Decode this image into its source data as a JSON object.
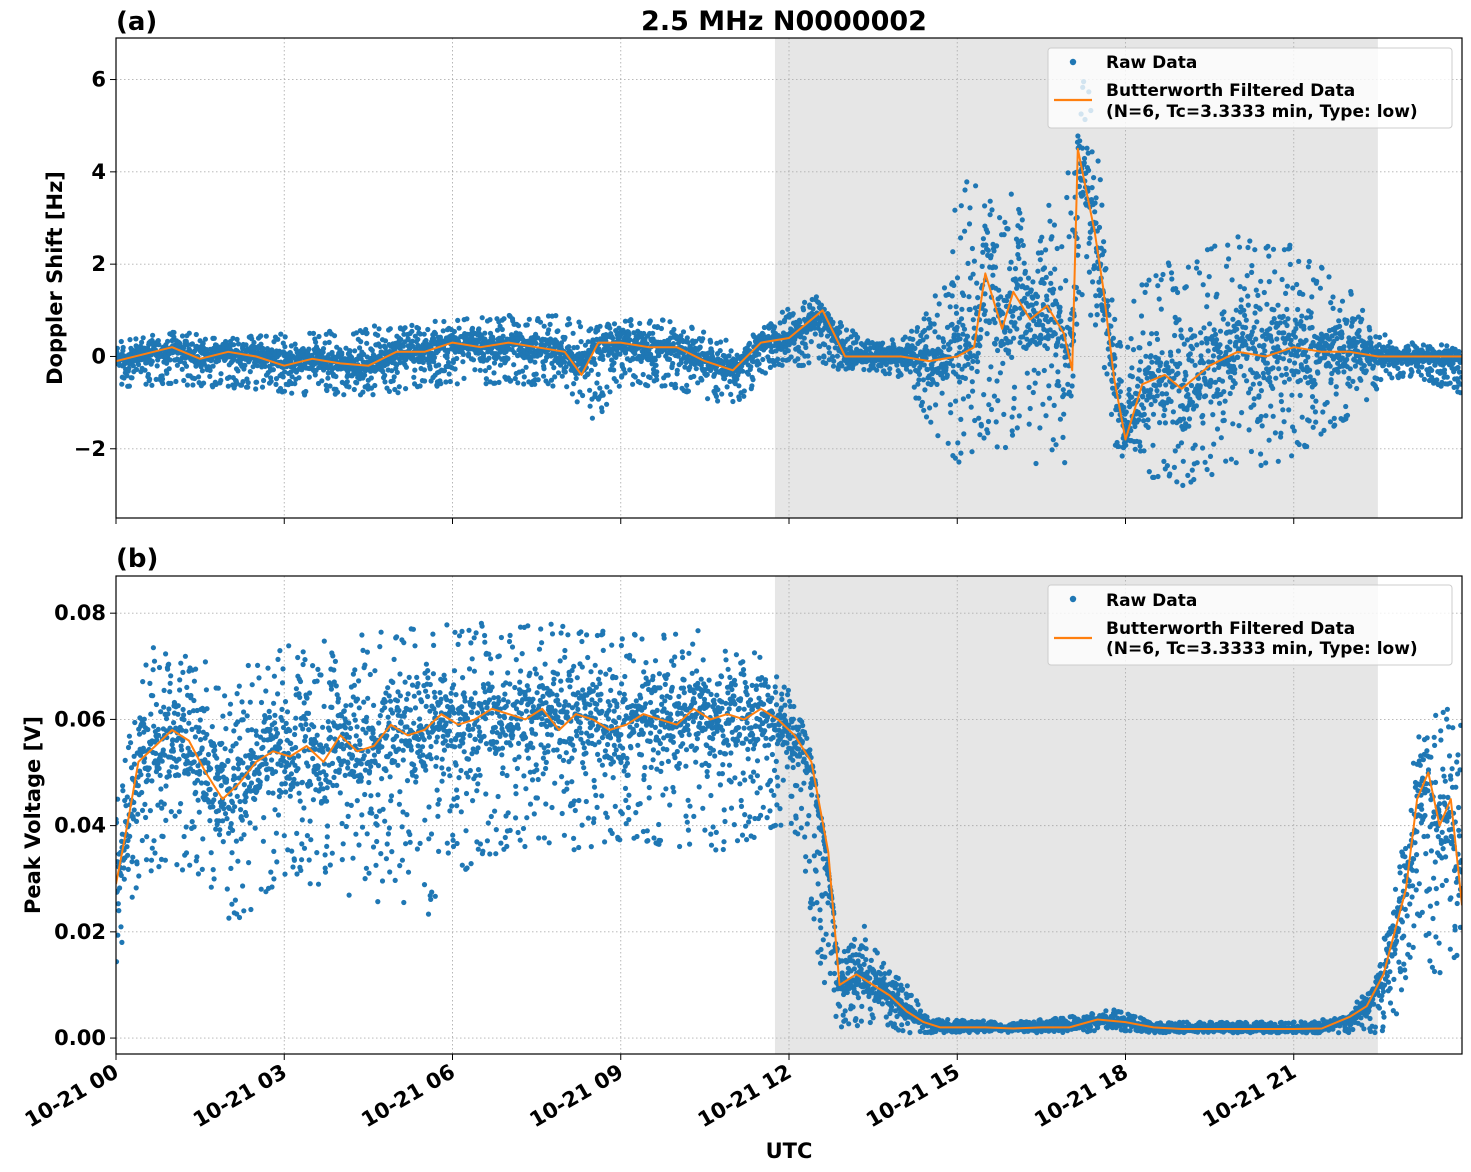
{
  "figure": {
    "title": "2.5 MHz N0000002",
    "xlabel": "UTC"
  },
  "colors": {
    "raw": "#1f77b4",
    "filtered": "#ff7f0e",
    "shade": "#e6e6e6",
    "grid": "#b0b0b0"
  },
  "chart_data": [
    {
      "type": "scatter",
      "panel_label": "(a)",
      "ylabel": "Doppler Shift [Hz]",
      "xlim_hours": [
        0,
        24
      ],
      "ylim": [
        -3.5,
        6.9
      ],
      "yticks": [
        -2,
        0,
        2,
        4,
        6
      ],
      "ytick_labels": [
        "−2",
        "0",
        "2",
        "4",
        "6"
      ],
      "xtick_labels": [],
      "shaded_hours": [
        11.75,
        22.5
      ],
      "grid": true,
      "legend_position": "top-right",
      "legend": [
        "Raw Data",
        "Butterworth Filtered Data",
        "(N=6, Tc=3.3333 min, Type: low)"
      ],
      "series": [
        {
          "name": "Raw Data",
          "kind": "scatter-envelope",
          "x": [
            0,
            1,
            2,
            3,
            4,
            5,
            6,
            7,
            8,
            8.5,
            9,
            10,
            11,
            11.75,
            12.5,
            12.7,
            13.5,
            14,
            14.8,
            15,
            15.5,
            16,
            16.5,
            16.9,
            17.05,
            17.3,
            17.6,
            17.9,
            18.3,
            19,
            20,
            21,
            22,
            22.5,
            23,
            24
          ],
          "upper": [
            0.3,
            0.6,
            0.4,
            0.5,
            0.6,
            0.7,
            0.8,
            0.9,
            0.9,
            0.6,
            0.8,
            0.8,
            0.3,
            0.9,
            1.4,
            0.9,
            0.3,
            0.4,
            1.6,
            4.0,
            3.6,
            3.6,
            3.4,
            3.2,
            4.8,
            6.4,
            3.4,
            0.4,
            1.8,
            2.2,
            2.6,
            2.4,
            1.5,
            0.5,
            0.4,
            0.2
          ],
          "lower": [
            -0.7,
            -0.6,
            -0.7,
            -0.8,
            -0.9,
            -0.8,
            -0.6,
            -0.6,
            -0.7,
            -1.5,
            -0.6,
            -0.7,
            -1.1,
            -0.2,
            -0.2,
            -0.3,
            -0.3,
            -0.5,
            -2.0,
            -2.4,
            -2.0,
            -2.3,
            -2.6,
            -2.6,
            -0.6,
            1.5,
            -1.2,
            -2.2,
            -2.6,
            -2.9,
            -2.5,
            -2.2,
            -1.3,
            -0.7,
            -0.4,
            -0.8
          ]
        },
        {
          "name": "Butterworth Filtered Data",
          "kind": "line",
          "x": [
            0,
            0.5,
            1,
            1.5,
            2,
            2.5,
            3,
            3.5,
            4,
            4.5,
            5,
            5.5,
            6,
            6.5,
            7,
            7.5,
            8,
            8.3,
            8.6,
            9,
            9.5,
            10,
            10.5,
            11,
            11.5,
            12,
            12.3,
            12.6,
            13,
            13.5,
            14,
            14.5,
            15,
            15.3,
            15.5,
            15.8,
            16,
            16.3,
            16.6,
            16.9,
            17.05,
            17.15,
            17.3,
            17.45,
            17.6,
            17.8,
            18,
            18.3,
            18.7,
            19,
            19.5,
            20,
            20.5,
            21,
            21.5,
            22,
            22.5,
            23,
            24
          ],
          "y": [
            -0.1,
            0.05,
            0.2,
            -0.05,
            0.1,
            0.0,
            -0.2,
            -0.05,
            -0.15,
            -0.2,
            0.1,
            0.1,
            0.3,
            0.2,
            0.3,
            0.2,
            0.1,
            -0.4,
            0.3,
            0.3,
            0.2,
            0.2,
            -0.1,
            -0.3,
            0.3,
            0.4,
            0.7,
            1.0,
            0.0,
            0.0,
            0.0,
            -0.1,
            0.0,
            0.2,
            1.8,
            0.6,
            1.4,
            0.8,
            1.1,
            0.5,
            -0.3,
            4.5,
            3.6,
            2.7,
            1.5,
            -0.5,
            -1.8,
            -0.6,
            -0.4,
            -0.7,
            -0.2,
            0.1,
            0.0,
            0.2,
            0.1,
            0.1,
            0.0,
            0.0,
            0.0
          ]
        }
      ]
    },
    {
      "type": "scatter",
      "panel_label": "(b)",
      "ylabel": "Peak Voltage [V]",
      "xlim_hours": [
        0,
        24
      ],
      "ylim": [
        -0.003,
        0.087
      ],
      "yticks": [
        0,
        0.02,
        0.04,
        0.06,
        0.08
      ],
      "ytick_labels": [
        "0.00",
        "0.02",
        "0.04",
        "0.06",
        "0.08"
      ],
      "xtick_labels": [
        "10-21 00",
        "10-21 03",
        "10-21 06",
        "10-21 09",
        "10-21 12",
        "10-21 15",
        "10-21 18",
        "10-21 21"
      ],
      "shaded_hours": [
        11.75,
        22.5
      ],
      "grid": true,
      "legend_position": "top-right",
      "legend": [
        "Raw Data",
        "Butterworth Filtered Data",
        "(N=6, Tc=3.3333 min, Type: low)"
      ],
      "series": [
        {
          "name": "Raw Data",
          "kind": "scatter-envelope",
          "x": [
            0,
            0.25,
            0.5,
            1,
            1.5,
            2,
            2.5,
            3,
            4,
            5,
            5.5,
            6,
            7,
            8,
            9,
            10,
            11,
            11.75,
            12.2,
            12.6,
            12.9,
            13.3,
            13.7,
            14.1,
            14.5,
            15,
            16,
            17,
            17.8,
            18.5,
            19,
            20,
            21,
            22,
            22.5,
            22.8,
            23.2,
            23.6,
            24
          ],
          "upper": [
            0.045,
            0.06,
            0.074,
            0.073,
            0.072,
            0.068,
            0.071,
            0.074,
            0.076,
            0.077,
            0.078,
            0.079,
            0.078,
            0.078,
            0.076,
            0.077,
            0.077,
            0.07,
            0.065,
            0.04,
            0.015,
            0.022,
            0.015,
            0.01,
            0.0035,
            0.0035,
            0.003,
            0.004,
            0.0055,
            0.003,
            0.003,
            0.003,
            0.003,
            0.004,
            0.015,
            0.03,
            0.057,
            0.065,
            0.066
          ],
          "lower": [
            0.014,
            0.02,
            0.03,
            0.032,
            0.03,
            0.02,
            0.025,
            0.03,
            0.025,
            0.025,
            0.022,
            0.03,
            0.035,
            0.035,
            0.037,
            0.036,
            0.035,
            0.04,
            0.035,
            0.01,
            0.002,
            0.002,
            0.002,
            0.001,
            0.001,
            0.001,
            0.001,
            0.001,
            0.0015,
            0.001,
            0.001,
            0.001,
            0.001,
            0.001,
            0.001,
            0.002,
            0.02,
            0.01,
            0.01
          ]
        },
        {
          "name": "Butterworth Filtered Data",
          "kind": "line",
          "x": [
            0,
            0.2,
            0.4,
            0.7,
            1,
            1.3,
            1.6,
            1.9,
            2.2,
            2.5,
            2.8,
            3.1,
            3.4,
            3.7,
            4,
            4.3,
            4.6,
            4.9,
            5.2,
            5.5,
            5.8,
            6.1,
            6.4,
            6.7,
            7,
            7.3,
            7.6,
            7.9,
            8.2,
            8.5,
            8.8,
            9.1,
            9.4,
            9.7,
            10,
            10.3,
            10.6,
            10.9,
            11.2,
            11.5,
            11.8,
            12.1,
            12.4,
            12.7,
            12.9,
            13.2,
            13.5,
            13.8,
            14.1,
            14.4,
            14.7,
            15,
            15.5,
            16,
            16.5,
            17,
            17.5,
            18,
            18.5,
            19,
            19.5,
            20,
            20.5,
            21,
            21.5,
            22,
            22.3,
            22.6,
            22.8,
            23.0,
            23.2,
            23.4,
            23.6,
            23.8,
            24
          ],
          "y": [
            0.029,
            0.04,
            0.052,
            0.055,
            0.058,
            0.056,
            0.05,
            0.045,
            0.048,
            0.052,
            0.054,
            0.053,
            0.055,
            0.052,
            0.057,
            0.054,
            0.055,
            0.059,
            0.057,
            0.058,
            0.061,
            0.059,
            0.06,
            0.062,
            0.061,
            0.06,
            0.062,
            0.058,
            0.061,
            0.06,
            0.058,
            0.059,
            0.061,
            0.06,
            0.059,
            0.062,
            0.06,
            0.061,
            0.06,
            0.062,
            0.06,
            0.057,
            0.052,
            0.035,
            0.01,
            0.012,
            0.01,
            0.008,
            0.005,
            0.003,
            0.002,
            0.002,
            0.002,
            0.0018,
            0.002,
            0.002,
            0.0035,
            0.003,
            0.002,
            0.0017,
            0.0017,
            0.0017,
            0.0017,
            0.0017,
            0.0018,
            0.004,
            0.006,
            0.012,
            0.02,
            0.028,
            0.045,
            0.05,
            0.04,
            0.045,
            0.025
          ]
        }
      ]
    }
  ]
}
